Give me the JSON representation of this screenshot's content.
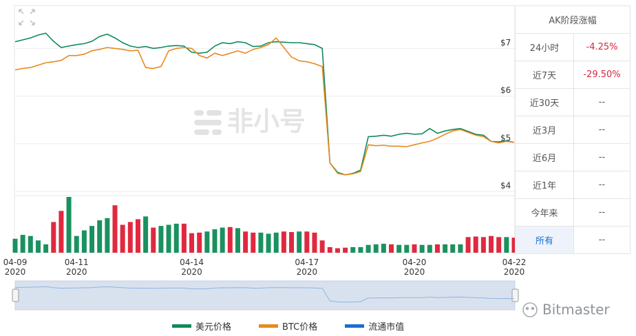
{
  "chart_data": {
    "type": "line",
    "categories": [
      "04-09\n2020",
      null,
      null,
      null,
      null,
      null,
      null,
      null,
      "04-11\n2020",
      null,
      null,
      null,
      null,
      null,
      null,
      null,
      null,
      null,
      null,
      null,
      null,
      null,
      null,
      "04-14\n2020",
      null,
      null,
      null,
      null,
      null,
      null,
      null,
      null,
      null,
      null,
      null,
      null,
      null,
      null,
      "04-17\n2020",
      null,
      null,
      null,
      null,
      null,
      null,
      null,
      null,
      null,
      null,
      null,
      null,
      null,
      "04-20\n2020",
      null,
      null,
      null,
      null,
      null,
      null,
      null,
      null,
      null,
      null,
      null,
      null,
      "04-22\n2020"
    ],
    "series": [
      {
        "name": "美元价格",
        "color": "#0e8a57",
        "values": [
          7.14,
          7.18,
          7.22,
          7.28,
          7.32,
          7.15,
          7.02,
          7.05,
          7.08,
          7.1,
          7.15,
          7.25,
          7.3,
          7.22,
          7.12,
          7.05,
          7.02,
          7.04,
          7.0,
          7.02,
          7.05,
          7.06,
          7.05,
          6.92,
          6.9,
          6.92,
          7.05,
          7.12,
          7.1,
          7.14,
          7.12,
          7.04,
          7.05,
          7.12,
          7.14,
          7.13,
          7.12,
          7.12,
          7.1,
          7.08,
          7.0,
          4.6,
          4.4,
          4.35,
          4.38,
          4.45,
          5.15,
          5.16,
          5.18,
          5.16,
          5.2,
          5.22,
          5.2,
          5.21,
          5.32,
          5.22,
          5.27,
          5.3,
          5.32,
          5.26,
          5.2,
          5.18,
          5.05,
          5.04,
          5.06,
          5.03
        ]
      },
      {
        "name": "BTC价格",
        "color": "#e8891d",
        "values": [
          6.55,
          6.58,
          6.6,
          6.65,
          6.7,
          6.72,
          6.75,
          6.85,
          6.85,
          6.88,
          6.95,
          6.98,
          7.02,
          7.0,
          6.98,
          6.95,
          6.96,
          6.6,
          6.58,
          6.62,
          6.95,
          7.0,
          7.02,
          7.0,
          6.85,
          6.8,
          6.9,
          6.85,
          6.9,
          6.95,
          6.9,
          6.98,
          7.02,
          7.08,
          7.22,
          7.02,
          6.82,
          6.74,
          6.72,
          6.68,
          6.62,
          4.6,
          4.38,
          4.35,
          4.37,
          4.42,
          4.98,
          4.96,
          4.97,
          4.95,
          4.95,
          4.94,
          4.98,
          5.02,
          5.05,
          5.12,
          5.2,
          5.27,
          5.3,
          5.24,
          5.18,
          5.15,
          5.05,
          5.02,
          5.05,
          5.03
        ]
      },
      {
        "name": "流通市值",
        "color": "#1a6fd1",
        "values": [
          null,
          null,
          null,
          null,
          null,
          null,
          null,
          null,
          null,
          null,
          null,
          null,
          null,
          null,
          null,
          null,
          null,
          null,
          null,
          null,
          null,
          null,
          null,
          null,
          null,
          null,
          null,
          null,
          null,
          null,
          null,
          null,
          null,
          null,
          null,
          null,
          null,
          null,
          null,
          null,
          null,
          null,
          null,
          null,
          null,
          null,
          null,
          null,
          null,
          null,
          null,
          null,
          null,
          null,
          null,
          null,
          null,
          null,
          null,
          null,
          null,
          null,
          null,
          null,
          null,
          null
        ]
      }
    ],
    "ylim": [
      3.93,
      7.9
    ],
    "yticks": [
      {
        "value": 4,
        "label": "$4"
      },
      {
        "value": 5,
        "label": "$5"
      },
      {
        "value": 6,
        "label": "$6"
      },
      {
        "value": 7,
        "label": "$7"
      }
    ],
    "grid": true,
    "volume": {
      "ylim": [
        0,
        100
      ],
      "up_color": "#1b9160",
      "down_color": "#e0293f",
      "values": [
        25,
        32,
        30,
        22,
        15,
        55,
        75,
        100,
        30,
        40,
        48,
        58,
        62,
        85,
        50,
        55,
        60,
        65,
        45,
        48,
        50,
        52,
        52,
        35,
        36,
        38,
        42,
        45,
        46,
        44,
        38,
        36,
        36,
        34,
        36,
        38,
        37,
        38,
        38,
        36,
        22,
        10,
        8,
        9,
        10,
        10,
        14,
        15,
        16,
        15,
        14,
        14,
        15,
        14,
        14,
        15,
        15,
        15,
        15,
        28,
        29,
        28,
        30,
        28,
        28,
        27
      ]
    }
  },
  "watermark": "非小号",
  "brand": "Bitmaster",
  "table": {
    "title": "AK阶段涨幅",
    "rows": [
      [
        "24小时",
        "-4.25%"
      ],
      [
        "近7天",
        "-29.50%"
      ],
      [
        "近30天",
        "--"
      ],
      [
        "近3月",
        "--"
      ],
      [
        "近6月",
        "--"
      ],
      [
        "近1年",
        "--"
      ],
      [
        "今年来",
        "--"
      ],
      [
        "所有",
        "--"
      ]
    ]
  }
}
